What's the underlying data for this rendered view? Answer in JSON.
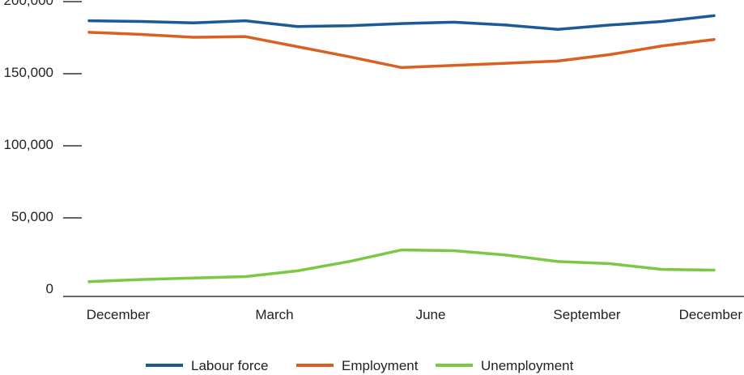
{
  "chart_data": {
    "type": "line",
    "title": "",
    "xlabel": "",
    "ylabel": "",
    "ylim": [
      0,
      200000
    ],
    "y_ticks": [
      0,
      50000,
      100000,
      150000,
      200000
    ],
    "y_tick_labels": [
      "0",
      "50,000",
      "100,000",
      "150,000",
      "200,000"
    ],
    "x_labels": [
      {
        "index": 0,
        "text": "December"
      },
      {
        "index": 3,
        "text": "March"
      },
      {
        "index": 6,
        "text": "June"
      },
      {
        "index": 9,
        "text": "September"
      },
      {
        "index": 12,
        "text": "December"
      }
    ],
    "x_count": 13,
    "grid": false,
    "legend_position": "bottom",
    "series": [
      {
        "name": "Labour force",
        "color": "#1a5a96",
        "values": [
          189000,
          188500,
          187500,
          189000,
          185000,
          185500,
          187000,
          188000,
          186000,
          183000,
          186000,
          188500,
          192500
        ]
      },
      {
        "name": "Employment",
        "color": "#d9601f",
        "values": [
          181000,
          179500,
          177500,
          178000,
          171000,
          164000,
          156500,
          158000,
          159500,
          161000,
          165500,
          171500,
          176000
        ]
      },
      {
        "name": "Unemployment",
        "color": "#7ac943",
        "values": [
          8000,
          9500,
          10500,
          11500,
          15500,
          22000,
          30000,
          29500,
          26500,
          22000,
          20500,
          16500,
          16000
        ]
      }
    ]
  }
}
